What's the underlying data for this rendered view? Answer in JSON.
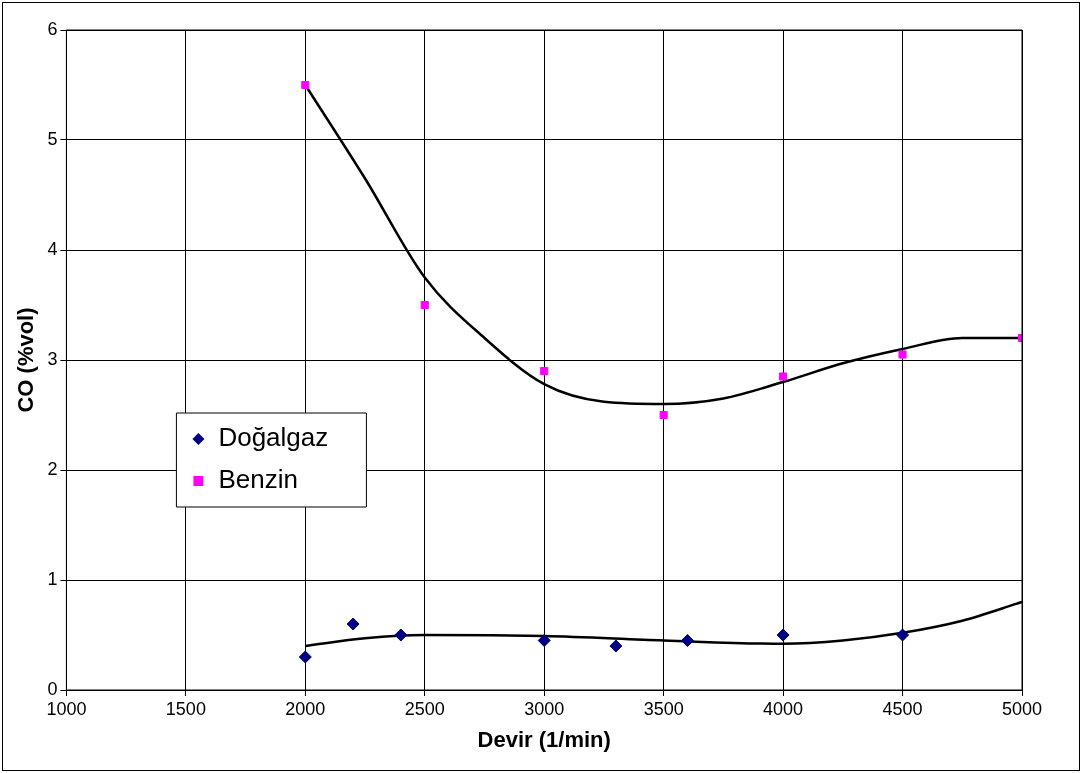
{
  "chart_data": {
    "type": "scatter",
    "xlabel": "Devir (1/min)",
    "ylabel": "CO (%vol)",
    "xlim": [
      1000,
      5000
    ],
    "xticks": [
      1000,
      1500,
      2000,
      2500,
      3000,
      3500,
      4000,
      4500,
      5000
    ],
    "ylim": [
      0,
      6
    ],
    "yticks": [
      0,
      1,
      2,
      3,
      4,
      5,
      6
    ],
    "grid": true,
    "legend": "left",
    "series": [
      {
        "name": "Doğalgaz",
        "color": "#000080",
        "marker": "diamond",
        "x": [
          2000,
          2200,
          2400,
          3000,
          3300,
          3600,
          4000,
          4500
        ],
        "values": [
          0.3,
          0.6,
          0.5,
          0.45,
          0.4,
          0.45,
          0.5,
          0.5
        ]
      },
      {
        "name": "Benzin",
        "color": "#ff00ff",
        "marker": "square",
        "x": [
          2000,
          2500,
          3000,
          3500,
          4000,
          4500,
          5000
        ],
        "values": [
          5.5,
          3.5,
          2.9,
          2.5,
          2.85,
          3.05,
          3.2
        ]
      },
      {
        "type": "line",
        "color": "#000000",
        "marker": "none",
        "x": [
          2000,
          2250,
          2500,
          3000,
          3500,
          4000,
          4250,
          4500,
          4750,
          5000
        ],
        "values": [
          0.4,
          0.47,
          0.5,
          0.49,
          0.45,
          0.42,
          0.45,
          0.52,
          0.63,
          0.8
        ]
      },
      {
        "type": "line",
        "color": "#000000",
        "marker": "none",
        "x": [
          2000,
          2250,
          2500,
          2750,
          3000,
          3250,
          3500,
          3750,
          4000,
          4250,
          4500,
          4750,
          5000
        ],
        "values": [
          5.5,
          4.65,
          3.75,
          3.2,
          2.78,
          2.62,
          2.6,
          2.65,
          2.8,
          2.97,
          3.1,
          3.2,
          3.2
        ]
      }
    ]
  }
}
